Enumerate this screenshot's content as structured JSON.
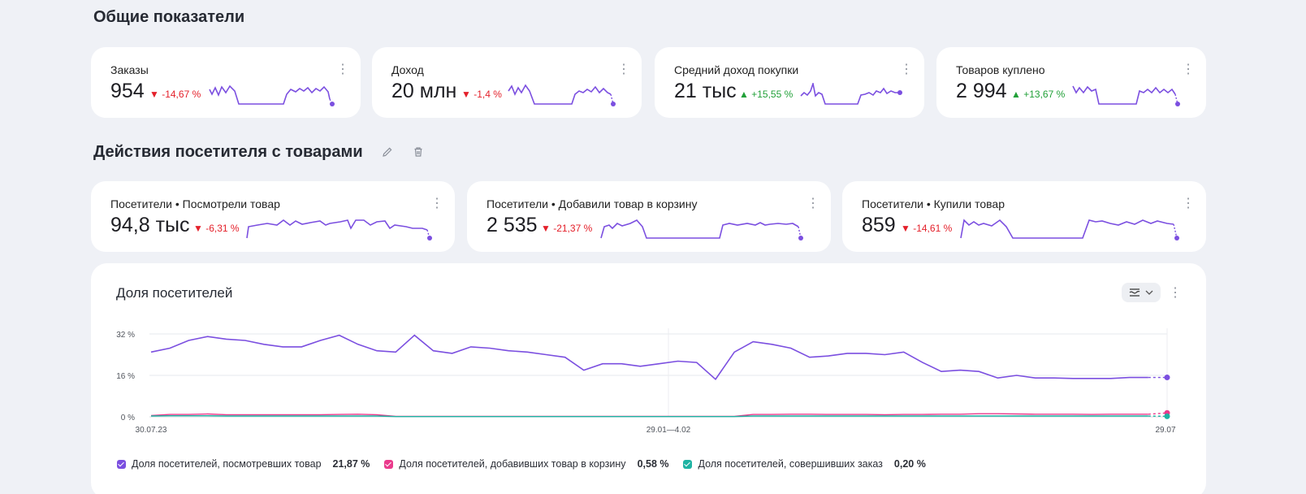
{
  "section1": {
    "title": "Общие показатели"
  },
  "kpis": [
    {
      "label": "Заказы",
      "value": "954",
      "delta": "▼ -14,67 %",
      "trend": "down"
    },
    {
      "label": "Доход",
      "value": "20 млн",
      "delta": "▼ -1,4 %",
      "trend": "down"
    },
    {
      "label": "Средний доход покупки",
      "value": "21 тыс",
      "delta": "▲ +15,55 %",
      "trend": "up"
    },
    {
      "label": "Товаров куплено",
      "value": "2 994",
      "delta": "▲ +13,67 %",
      "trend": "up"
    }
  ],
  "section2": {
    "title": "Действия посетителя с товарами",
    "edit_icon": "pencil-icon",
    "delete_icon": "trash-icon"
  },
  "funnel": [
    {
      "label": "Посетители • Посмотрели товар",
      "value": "94,8 тыс",
      "delta": "▼ -6,31 %",
      "trend": "down"
    },
    {
      "label": "Посетители • Добавили товар в корзину",
      "value": "2 535",
      "delta": "▼ -21,37 %",
      "trend": "down"
    },
    {
      "label": "Посетители • Купили товар",
      "value": "859",
      "delta": "▼ -14,61 %",
      "trend": "down"
    }
  ],
  "share_chart": {
    "title": "Доля посетителей",
    "legend": [
      {
        "label": "Доля посетителей, посмотревших товар",
        "value": "21,87 %",
        "color": "#7b4fe0"
      },
      {
        "label": "Доля посетителей, добавивших товар в корзину",
        "value": "0,58 %",
        "color": "#ea3a8c"
      },
      {
        "label": "Доля посетителей, совершивших заказ",
        "value": "0,20 %",
        "color": "#1fb3a3"
      }
    ]
  },
  "colors": {
    "accent": "#7b4fe0",
    "down": "#e4202a",
    "up": "#21a038"
  },
  "chart_data": {
    "type": "line",
    "x_tick_labels": [
      "30.07.23",
      "29.01—4.02",
      "29.07"
    ],
    "y_tick_labels": [
      "32 %",
      "16 %",
      "0 %"
    ],
    "ylim": [
      0,
      32
    ],
    "grid": true,
    "legend_position": "bottom",
    "series": [
      {
        "name": "Доля посетителей, посмотревших товар",
        "color": "#7b4fe0",
        "values": [
          25,
          26.5,
          29.5,
          31,
          30,
          29.5,
          28,
          27,
          27,
          29.5,
          31.5,
          28,
          25.5,
          25,
          31.5,
          25.5,
          24.5,
          27,
          26.5,
          25.5,
          25,
          24,
          23,
          18,
          20.5,
          20.5,
          19.5,
          20.5,
          21.5,
          21,
          14.5,
          25,
          29,
          28,
          26.5,
          23,
          23.5,
          24.5,
          24.5,
          24,
          25,
          21,
          17.5,
          18,
          17.5,
          15,
          16,
          15,
          15,
          14.8,
          14.8,
          14.8,
          15.2,
          15.2,
          15.2
        ]
      },
      {
        "name": "Доля посетителей, добавивших товар в корзину",
        "color": "#ea3a8c",
        "values": [
          0.5,
          0.9,
          0.9,
          1.1,
          0.8,
          0.8,
          0.8,
          0.8,
          0.8,
          0.8,
          0.9,
          1,
          0.8,
          0.2,
          0.2,
          0.2,
          0.2,
          0.2,
          0.2,
          0.2,
          0.2,
          0.2,
          0.2,
          0.2,
          0.2,
          0.2,
          0.2,
          0.2,
          0.2,
          0.2,
          0.2,
          0.2,
          0.9,
          0.9,
          1,
          1,
          0.9,
          0.9,
          0.9,
          0.8,
          0.9,
          0.9,
          1,
          1,
          1.2,
          1.2,
          1.1,
          1,
          1,
          1,
          0.9,
          1,
          1,
          1,
          1.5
        ]
      },
      {
        "name": "Доля посетителей, совершивших заказ",
        "color": "#1fb3a3",
        "values": [
          0.3,
          0.4,
          0.4,
          0.4,
          0.3,
          0.3,
          0.3,
          0.3,
          0.3,
          0.3,
          0.3,
          0.3,
          0.3,
          0.1,
          0.1,
          0.1,
          0.1,
          0.1,
          0.1,
          0.1,
          0.1,
          0.1,
          0.1,
          0.1,
          0.1,
          0.1,
          0.1,
          0.1,
          0.1,
          0.1,
          0.1,
          0.1,
          0.3,
          0.3,
          0.3,
          0.3,
          0.3,
          0.3,
          0.3,
          0.3,
          0.3,
          0.3,
          0.3,
          0.3,
          0.3,
          0.3,
          0.3,
          0.3,
          0.3,
          0.3,
          0.3,
          0.3,
          0.3,
          0.3,
          0.2
        ]
      }
    ]
  }
}
